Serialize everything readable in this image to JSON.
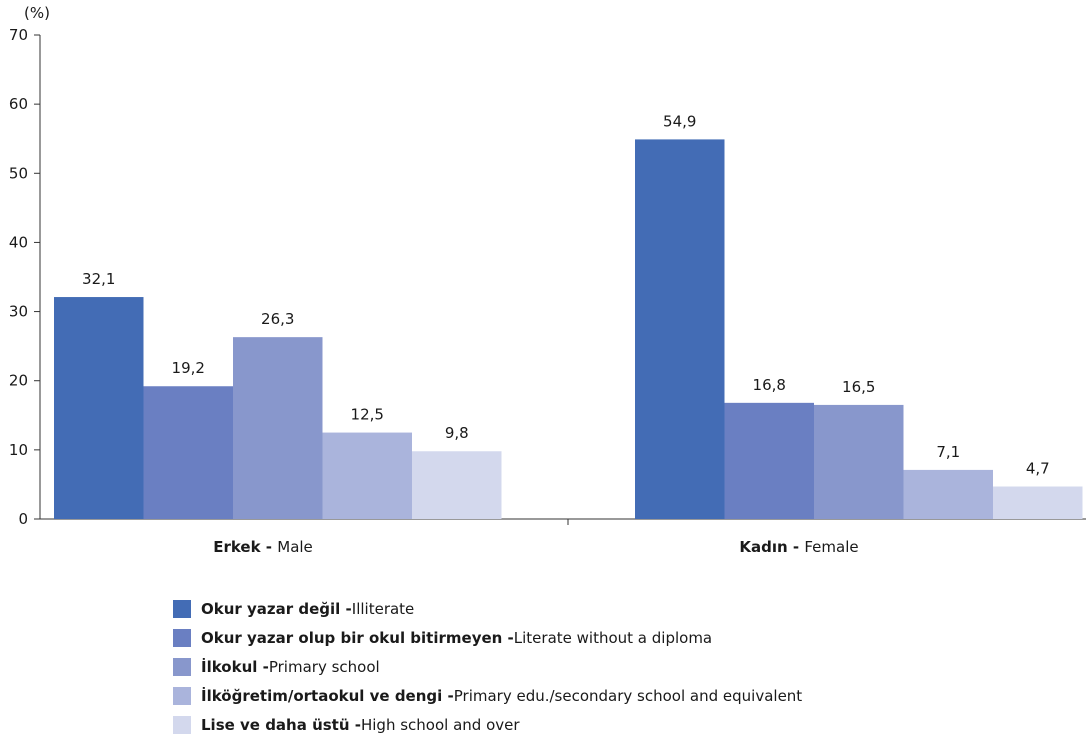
{
  "chart_data": {
    "type": "bar",
    "ylabel": "(%)",
    "ylim": [
      0,
      70
    ],
    "yticks": [
      "0",
      "10",
      "20",
      "30",
      "40",
      "50",
      "60",
      "70"
    ],
    "categories": [
      {
        "tr": "Erkek",
        "sep": " - ",
        "en": "Male"
      },
      {
        "tr": "Kadın",
        "sep": " - ",
        "en": "Female"
      }
    ],
    "series": [
      {
        "name_tr": "Okur yazar değil",
        "sep": " - ",
        "name_en": "Illiterate",
        "color": "#436cb5",
        "values": [
          32.1,
          54.9
        ],
        "labels": [
          "32,1",
          "54,9"
        ]
      },
      {
        "name_tr": "Okur yazar olup bir okul bitirmeyen",
        "sep": " - ",
        "name_en": "Literate without a diploma",
        "color": "#6a7fc2",
        "values": [
          19.2,
          16.8
        ],
        "labels": [
          "19,2",
          "16,8"
        ]
      },
      {
        "name_tr": "İlkokul",
        "sep": " - ",
        "name_en": "Primary school",
        "color": "#8897cc",
        "values": [
          26.3,
          16.5
        ],
        "labels": [
          "26,3",
          "16,5"
        ]
      },
      {
        "name_tr": "İlköğretim/ortaokul ve dengi",
        "sep": " - ",
        "name_en": "Primary edu./secondary school and equivalent",
        "color": "#aab4dc",
        "values": [
          12.5,
          7.1
        ],
        "labels": [
          "12,5",
          "7,1"
        ]
      },
      {
        "name_tr": "Lise ve daha üstü",
        "sep": " - ",
        "name_en": "High school and over",
        "color": "#d3d8ed",
        "values": [
          9.8,
          4.7
        ],
        "labels": [
          "9,8",
          "4,7"
        ]
      }
    ],
    "grid": false,
    "legend": "bottom"
  }
}
